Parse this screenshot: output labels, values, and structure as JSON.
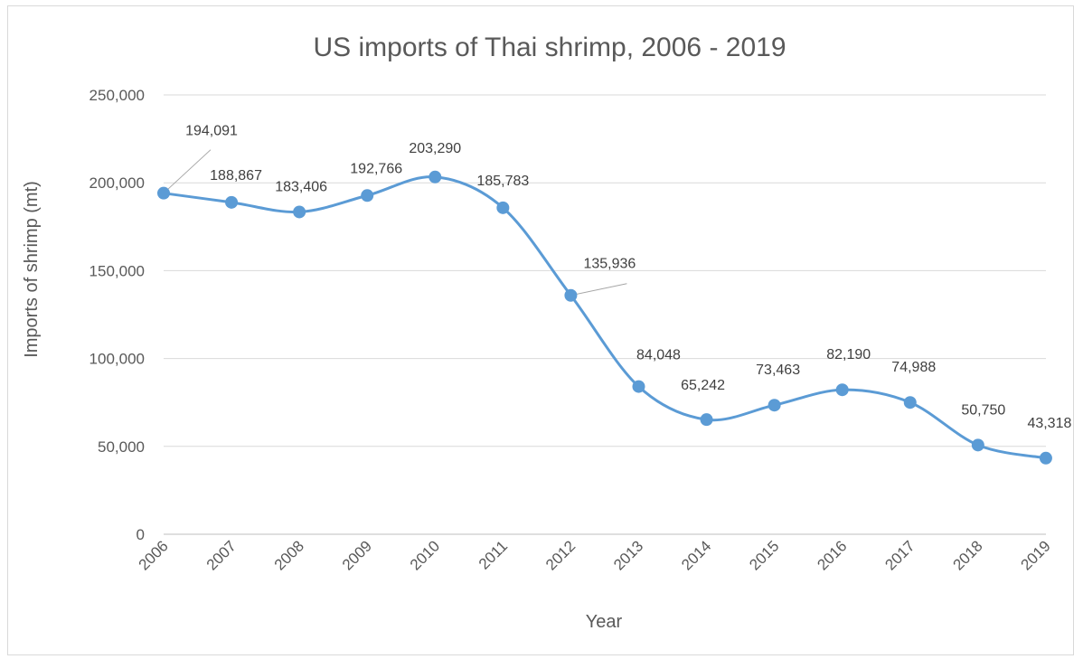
{
  "chart_data": {
    "type": "line",
    "title": "US imports of Thai shrimp, 2006 - 2019",
    "xlabel": "Year",
    "ylabel": "Imports of shrimp (mt)",
    "ylim": [
      0,
      250000
    ],
    "y_ticks": [
      0,
      50000,
      100000,
      150000,
      200000,
      250000
    ],
    "y_tick_labels": [
      "0",
      "50,000",
      "100,000",
      "150,000",
      "200,000",
      "250,000"
    ],
    "grid": true,
    "legend": "none",
    "smooth": true,
    "color": "#5b9bd5",
    "categories": [
      "2006",
      "2007",
      "2008",
      "2009",
      "2010",
      "2011",
      "2012",
      "2013",
      "2014",
      "2015",
      "2016",
      "2017",
      "2018",
      "2019"
    ],
    "series": [
      {
        "values": [
          194091,
          188867,
          183406,
          192766,
          203290,
          185783,
          135936,
          84048,
          65242,
          73463,
          82190,
          74988,
          50750,
          43318
        ],
        "labels": [
          "194,091",
          "188,867",
          "183,406",
          "192,766",
          "203,290",
          "185,783",
          "135,936",
          "84,048",
          "65,242",
          "73,463",
          "82,190",
          "74,988",
          "50,750",
          "43,318"
        ]
      }
    ]
  }
}
